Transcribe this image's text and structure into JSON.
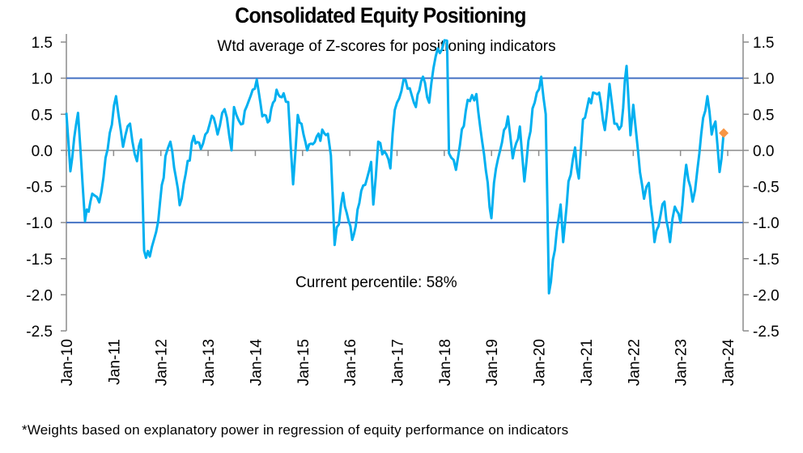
{
  "chart_data": {
    "type": "line",
    "title": "Consolidated Equity Positioning",
    "subtitle": "Wtd average of Z-scores for positioning indicators",
    "annotation": "Current percentile: 58%",
    "footnote": "*Weights based on explanatory power in regression of equity performance on indicators",
    "xlabel": "",
    "ylabel": "",
    "ylim": [
      -2.5,
      1.5
    ],
    "yticks": [
      "1.5",
      "1.0",
      "0.5",
      "0.0",
      "-0.5",
      "-1.0",
      "-1.5",
      "-2.0",
      "-2.5"
    ],
    "xticks": [
      "Jan-10",
      "Jan-11",
      "Jan-12",
      "Jan-13",
      "Jan-14",
      "Jan-15",
      "Jan-16",
      "Jan-17",
      "Jan-18",
      "Jan-19",
      "Jan-20",
      "Jan-21",
      "Jan-22",
      "Jan-23",
      "Jan-24"
    ],
    "xlim": [
      "2010-01-01",
      "2024-01-01"
    ],
    "reference_lines": [
      1.0,
      -1.0
    ],
    "dual_y_axis": true,
    "grid": false,
    "colors": {
      "series": "#00b0f0",
      "reference": "#4472c4",
      "marker": "#f79646",
      "axis": "#8c8c8c"
    },
    "series": [
      {
        "points": [
          [
            "2010-01-01",
            0.52
          ],
          [
            "2010-02-01",
            -0.29
          ],
          [
            "2010-04-01",
            0.52
          ],
          [
            "2010-05-25",
            -0.98
          ],
          [
            "2010-07-20",
            -0.6
          ],
          [
            "2010-09-12",
            -0.72
          ],
          [
            "2011-01-20",
            0.75
          ],
          [
            "2011-03-15",
            0.05
          ],
          [
            "2011-05-08",
            0.37
          ],
          [
            "2011-07-01",
            -0.15
          ],
          [
            "2011-08-01",
            0.15
          ],
          [
            "2011-08-25",
            -1.39
          ],
          [
            "2011-10-08",
            -1.47
          ],
          [
            "2011-12-12",
            -0.98
          ],
          [
            "2012-02-06",
            -0.08
          ],
          [
            "2012-03-15",
            0.12
          ],
          [
            "2012-05-26",
            -0.76
          ],
          [
            "2012-09-12",
            0.2
          ],
          [
            "2012-11-06",
            0.02
          ],
          [
            "2013-01-30",
            0.48
          ],
          [
            "2013-03-15",
            0.22
          ],
          [
            "2013-05-08",
            0.57
          ],
          [
            "2013-07-01",
            0.0
          ],
          [
            "2013-07-20",
            0.6
          ],
          [
            "2013-09-12",
            0.36
          ],
          [
            "2013-11-10",
            0.68
          ],
          [
            "2014-01-12",
            0.98
          ],
          [
            "2014-02-24",
            0.47
          ],
          [
            "2014-04-20",
            0.41
          ],
          [
            "2014-06-14",
            0.84
          ],
          [
            "2014-08-08",
            0.79
          ],
          [
            "2014-09-12",
            0.67
          ],
          [
            "2014-10-20",
            -0.47
          ],
          [
            "2014-11-25",
            0.49
          ],
          [
            "2015-02-06",
            0.0
          ],
          [
            "2015-04-20",
            0.19
          ],
          [
            "2015-07-16",
            0.23
          ],
          [
            "2015-08-08",
            -0.07
          ],
          [
            "2015-09-06",
            -1.31
          ],
          [
            "2015-11-10",
            -0.59
          ],
          [
            "2016-01-20",
            -1.24
          ],
          [
            "2016-03-15",
            -0.73
          ],
          [
            "2016-06-14",
            -0.16
          ],
          [
            "2016-07-01",
            -0.75
          ],
          [
            "2016-08-08",
            0.12
          ],
          [
            "2016-11-10",
            -0.25
          ],
          [
            "2016-12-14",
            0.56
          ],
          [
            "2017-02-20",
            0.98
          ],
          [
            "2017-05-26",
            0.6
          ],
          [
            "2017-07-20",
            1.02
          ],
          [
            "2017-09-06",
            0.66
          ],
          [
            "2017-10-26",
            1.3
          ],
          [
            "2017-12-14",
            1.4
          ],
          [
            "2018-01-22",
            1.52
          ],
          [
            "2018-02-06",
            -0.04
          ],
          [
            "2018-04-01",
            -0.27
          ],
          [
            "2018-07-01",
            0.7
          ],
          [
            "2018-09-06",
            0.78
          ],
          [
            "2018-10-20",
            0.13
          ],
          [
            "2018-12-31",
            -0.94
          ],
          [
            "2019-01-20",
            -0.45
          ],
          [
            "2019-05-08",
            0.47
          ],
          [
            "2019-06-14",
            -0.11
          ],
          [
            "2019-08-08",
            0.33
          ],
          [
            "2019-09-12",
            -0.43
          ],
          [
            "2019-11-14",
            0.58
          ],
          [
            "2020-01-20",
            1.02
          ],
          [
            "2020-02-24",
            0.5
          ],
          [
            "2020-03-20",
            -1.98
          ],
          [
            "2020-04-20",
            -1.51
          ],
          [
            "2020-06-18",
            -0.75
          ],
          [
            "2020-07-08",
            -1.27
          ],
          [
            "2020-08-18",
            -0.43
          ],
          [
            "2020-10-08",
            0.04
          ],
          [
            "2020-11-06",
            -0.39
          ],
          [
            "2020-12-08",
            0.43
          ],
          [
            "2021-02-24",
            0.8
          ],
          [
            "2021-04-12",
            0.8
          ],
          [
            "2021-05-26",
            0.28
          ],
          [
            "2021-07-01",
            0.92
          ],
          [
            "2021-08-08",
            0.37
          ],
          [
            "2021-10-01",
            0.34
          ],
          [
            "2021-11-10",
            1.17
          ],
          [
            "2021-12-10",
            0.21
          ],
          [
            "2022-01-01",
            0.63
          ],
          [
            "2022-02-06",
            0.0
          ],
          [
            "2022-03-25",
            -0.67
          ],
          [
            "2022-05-01",
            -0.45
          ],
          [
            "2022-06-14",
            -1.27
          ],
          [
            "2022-08-30",
            -0.71
          ],
          [
            "2022-10-12",
            -1.27
          ],
          [
            "2022-11-18",
            -0.78
          ],
          [
            "2023-01-01",
            -1.0
          ],
          [
            "2023-02-14",
            -0.2
          ],
          [
            "2023-04-05",
            -0.71
          ],
          [
            "2023-05-12",
            -0.26
          ],
          [
            "2023-06-25",
            0.45
          ],
          [
            "2023-07-28",
            0.75
          ],
          [
            "2023-08-30",
            0.22
          ],
          [
            "2023-09-28",
            0.4
          ],
          [
            "2023-10-30",
            -0.3
          ],
          [
            "2023-11-28",
            0.19
          ]
        ]
      }
    ],
    "current_marker": [
      "2023-12-01",
      0.24
    ]
  }
}
